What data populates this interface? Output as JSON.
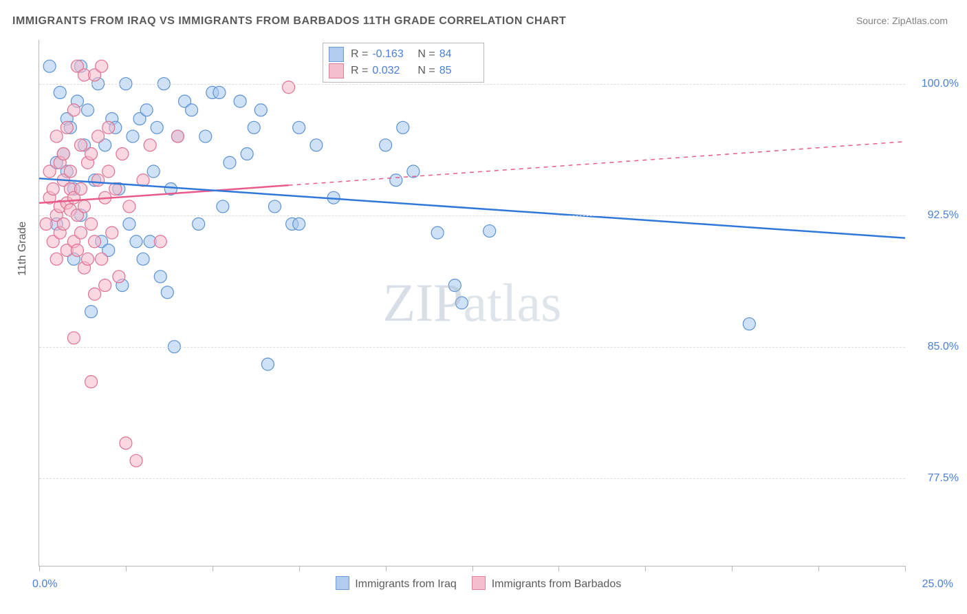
{
  "title": "IMMIGRANTS FROM IRAQ VS IMMIGRANTS FROM BARBADOS 11TH GRADE CORRELATION CHART",
  "source_label": "Source: ",
  "source_value": "ZipAtlas.com",
  "y_axis_title": "11th Grade",
  "watermark_a": "ZIP",
  "watermark_b": "atlas",
  "chart": {
    "type": "scatter-with-trendlines",
    "background_color": "#ffffff",
    "grid_color": "#dcdcdc",
    "axis_color": "#b8b8b8",
    "text_color": "#5a5a5a",
    "value_color": "#4a7fd6",
    "xlim": [
      0,
      25
    ],
    "ylim": [
      72.5,
      102.5
    ],
    "x_ticks": [
      0,
      2.5,
      5,
      7.5,
      10,
      12.5,
      15,
      17.5,
      20,
      22.5,
      25
    ],
    "x_tick_labels_shown": {
      "0": "0.0%",
      "25": "25.0%"
    },
    "y_ticks": [
      77.5,
      85.0,
      92.5,
      100.0
    ],
    "y_tick_labels": [
      "77.5%",
      "85.0%",
      "92.5%",
      "100.0%"
    ],
    "marker_radius": 9,
    "marker_stroke_width": 1.2,
    "trendline_width": 2.5,
    "series": [
      {
        "name": "Immigrants from Iraq",
        "fill_color": "#a8c8ee",
        "fill_opacity": 0.55,
        "stroke_color": "#5b92d4",
        "trend_color": "#2f78d8",
        "trend_solid_to_x": 25,
        "R": "-0.163",
        "N": "84",
        "trend_start": {
          "x": 0,
          "y": 94.6
        },
        "trend_end": {
          "x": 25,
          "y": 91.2
        },
        "points": [
          {
            "x": 0.3,
            "y": 101.0
          },
          {
            "x": 0.5,
            "y": 95.5
          },
          {
            "x": 0.5,
            "y": 92.0
          },
          {
            "x": 0.6,
            "y": 99.5
          },
          {
            "x": 0.7,
            "y": 96.0
          },
          {
            "x": 0.8,
            "y": 98.0
          },
          {
            "x": 0.8,
            "y": 95.0
          },
          {
            "x": 0.9,
            "y": 97.5
          },
          {
            "x": 1.0,
            "y": 94.0
          },
          {
            "x": 1.0,
            "y": 90.0
          },
          {
            "x": 1.1,
            "y": 99.0
          },
          {
            "x": 1.2,
            "y": 101.0
          },
          {
            "x": 1.2,
            "y": 92.5
          },
          {
            "x": 1.3,
            "y": 96.5
          },
          {
            "x": 1.4,
            "y": 98.5
          },
          {
            "x": 1.5,
            "y": 87.0
          },
          {
            "x": 1.6,
            "y": 94.5
          },
          {
            "x": 1.7,
            "y": 100.0
          },
          {
            "x": 1.8,
            "y": 91.0
          },
          {
            "x": 1.9,
            "y": 96.5
          },
          {
            "x": 2.0,
            "y": 90.5
          },
          {
            "x": 2.1,
            "y": 98.0
          },
          {
            "x": 2.2,
            "y": 97.5
          },
          {
            "x": 2.3,
            "y": 94.0
          },
          {
            "x": 2.4,
            "y": 88.5
          },
          {
            "x": 2.5,
            "y": 100.0
          },
          {
            "x": 2.6,
            "y": 92.0
          },
          {
            "x": 2.7,
            "y": 97.0
          },
          {
            "x": 2.8,
            "y": 91.0
          },
          {
            "x": 2.9,
            "y": 98.0
          },
          {
            "x": 3.0,
            "y": 90.0
          },
          {
            "x": 3.1,
            "y": 98.5
          },
          {
            "x": 3.2,
            "y": 91.0
          },
          {
            "x": 3.3,
            "y": 95.0
          },
          {
            "x": 3.4,
            "y": 97.5
          },
          {
            "x": 3.5,
            "y": 89.0
          },
          {
            "x": 3.6,
            "y": 100.0
          },
          {
            "x": 3.7,
            "y": 88.1
          },
          {
            "x": 3.8,
            "y": 94.0
          },
          {
            "x": 3.9,
            "y": 85.0
          },
          {
            "x": 4.0,
            "y": 97.0
          },
          {
            "x": 4.2,
            "y": 99.0
          },
          {
            "x": 4.4,
            "y": 98.5
          },
          {
            "x": 4.6,
            "y": 92.0
          },
          {
            "x": 4.8,
            "y": 97.0
          },
          {
            "x": 5.0,
            "y": 99.5
          },
          {
            "x": 5.2,
            "y": 99.5
          },
          {
            "x": 5.3,
            "y": 93.0
          },
          {
            "x": 5.5,
            "y": 95.5
          },
          {
            "x": 5.8,
            "y": 99.0
          },
          {
            "x": 6.0,
            "y": 96.0
          },
          {
            "x": 6.2,
            "y": 97.5
          },
          {
            "x": 6.4,
            "y": 98.5
          },
          {
            "x": 6.6,
            "y": 84.0
          },
          {
            "x": 6.8,
            "y": 93.0
          },
          {
            "x": 7.3,
            "y": 92.0
          },
          {
            "x": 7.5,
            "y": 97.5
          },
          {
            "x": 7.5,
            "y": 92.0
          },
          {
            "x": 8.0,
            "y": 96.5
          },
          {
            "x": 8.5,
            "y": 93.5
          },
          {
            "x": 10.0,
            "y": 96.5
          },
          {
            "x": 10.3,
            "y": 94.5
          },
          {
            "x": 10.5,
            "y": 97.5
          },
          {
            "x": 10.8,
            "y": 95.0
          },
          {
            "x": 11.5,
            "y": 91.5
          },
          {
            "x": 12.0,
            "y": 88.5
          },
          {
            "x": 12.2,
            "y": 87.5
          },
          {
            "x": 13.0,
            "y": 91.6
          },
          {
            "x": 20.5,
            "y": 86.3
          }
        ]
      },
      {
        "name": "Immigrants from Barbados",
        "fill_color": "#f5b8c8",
        "fill_opacity": 0.55,
        "stroke_color": "#e07090",
        "trend_color": "#e85a8a",
        "trend_solid_to_x": 7.2,
        "R": "0.032",
        "N": "85",
        "trend_start": {
          "x": 0,
          "y": 93.2
        },
        "trend_end": {
          "x": 25,
          "y": 96.7
        },
        "points": [
          {
            "x": 0.2,
            "y": 92.0
          },
          {
            "x": 0.3,
            "y": 93.5
          },
          {
            "x": 0.3,
            "y": 95.0
          },
          {
            "x": 0.4,
            "y": 91.0
          },
          {
            "x": 0.4,
            "y": 94.0
          },
          {
            "x": 0.5,
            "y": 92.5
          },
          {
            "x": 0.5,
            "y": 97.0
          },
          {
            "x": 0.5,
            "y": 90.0
          },
          {
            "x": 0.6,
            "y": 93.0
          },
          {
            "x": 0.6,
            "y": 95.5
          },
          {
            "x": 0.6,
            "y": 91.5
          },
          {
            "x": 0.7,
            "y": 94.5
          },
          {
            "x": 0.7,
            "y": 92.0
          },
          {
            "x": 0.7,
            "y": 96.0
          },
          {
            "x": 0.8,
            "y": 93.2
          },
          {
            "x": 0.8,
            "y": 90.5
          },
          {
            "x": 0.8,
            "y": 97.5
          },
          {
            "x": 0.9,
            "y": 92.8
          },
          {
            "x": 0.9,
            "y": 95.0
          },
          {
            "x": 0.9,
            "y": 94.0
          },
          {
            "x": 1.0,
            "y": 85.5
          },
          {
            "x": 1.0,
            "y": 91.0
          },
          {
            "x": 1.0,
            "y": 93.5
          },
          {
            "x": 1.0,
            "y": 98.5
          },
          {
            "x": 1.1,
            "y": 101.0
          },
          {
            "x": 1.1,
            "y": 90.5
          },
          {
            "x": 1.1,
            "y": 92.5
          },
          {
            "x": 1.2,
            "y": 96.5
          },
          {
            "x": 1.2,
            "y": 94.0
          },
          {
            "x": 1.2,
            "y": 91.5
          },
          {
            "x": 1.3,
            "y": 100.5
          },
          {
            "x": 1.3,
            "y": 93.0
          },
          {
            "x": 1.3,
            "y": 89.5
          },
          {
            "x": 1.4,
            "y": 90.0
          },
          {
            "x": 1.4,
            "y": 95.5
          },
          {
            "x": 1.5,
            "y": 83.0
          },
          {
            "x": 1.5,
            "y": 92.0
          },
          {
            "x": 1.5,
            "y": 96.0
          },
          {
            "x": 1.6,
            "y": 100.5
          },
          {
            "x": 1.6,
            "y": 91.0
          },
          {
            "x": 1.6,
            "y": 88.0
          },
          {
            "x": 1.7,
            "y": 94.5
          },
          {
            "x": 1.7,
            "y": 97.0
          },
          {
            "x": 1.8,
            "y": 101.0
          },
          {
            "x": 1.8,
            "y": 90.0
          },
          {
            "x": 1.9,
            "y": 93.5
          },
          {
            "x": 1.9,
            "y": 88.5
          },
          {
            "x": 2.0,
            "y": 95.0
          },
          {
            "x": 2.0,
            "y": 97.5
          },
          {
            "x": 2.1,
            "y": 91.5
          },
          {
            "x": 2.2,
            "y": 94.0
          },
          {
            "x": 2.3,
            "y": 89.0
          },
          {
            "x": 2.4,
            "y": 96.0
          },
          {
            "x": 2.5,
            "y": 79.5
          },
          {
            "x": 2.6,
            "y": 93.0
          },
          {
            "x": 2.8,
            "y": 78.5
          },
          {
            "x": 3.0,
            "y": 94.5
          },
          {
            "x": 3.2,
            "y": 96.5
          },
          {
            "x": 3.5,
            "y": 91.0
          },
          {
            "x": 4.0,
            "y": 97.0
          },
          {
            "x": 7.2,
            "y": 99.8
          }
        ]
      }
    ]
  },
  "top_legend": {
    "r_label": "R =",
    "n_label": "N ="
  },
  "bottom_legend": {
    "series1": "Immigrants from Iraq",
    "series2": "Immigrants from Barbados"
  }
}
